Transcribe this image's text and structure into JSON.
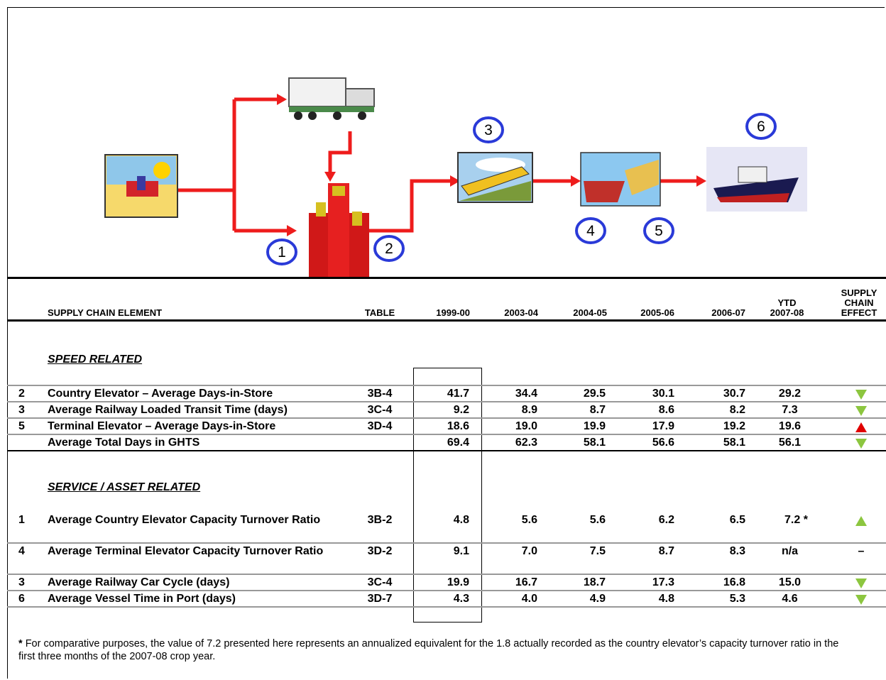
{
  "diagram": {
    "markers": [
      "1",
      "2",
      "3",
      "4",
      "5",
      "6"
    ]
  },
  "table": {
    "headers": [
      "SUPPLY CHAIN ELEMENT",
      "TABLE",
      "1999-00",
      "2003-04",
      "2004-05",
      "2005-06",
      "2006-07",
      "YTD\n2007-08",
      "SUPPLY\nCHAIN\nEFFECT"
    ],
    "sections": [
      {
        "title": "SPEED RELATED",
        "rows": [
          {
            "cells": [
              "2",
              "Country Elevator – Average Days-in-Store",
              "3B-4",
              "41.7",
              "34.4",
              "29.5",
              "30.1",
              "30.7",
              "29.2"
            ],
            "effect": {
              "symbol": "down",
              "color": "#8cc63f"
            }
          },
          {
            "cells": [
              "3",
              "Average Railway Loaded Transit Time (days)",
              "3C-4",
              "9.2",
              "8.9",
              "8.7",
              "8.6",
              "8.2",
              "7.3"
            ],
            "effect": {
              "symbol": "down",
              "color": "#8cc63f"
            }
          },
          {
            "cells": [
              "5",
              "Terminal Elevator – Average Days-in-Store",
              "3D-4",
              "18.6",
              "19.0",
              "19.9",
              "17.9",
              "19.2",
              "19.6"
            ],
            "effect": {
              "symbol": "up",
              "color": "#e00000"
            }
          },
          {
            "cells": [
              null,
              "Average Total Days in GHTS",
              null,
              "69.4",
              "62.3",
              "58.1",
              "56.6",
              "58.1",
              "56.1"
            ],
            "effect": {
              "symbol": "down",
              "color": "#8cc63f"
            }
          }
        ]
      },
      {
        "title": "SERVICE / ASSET RELATED",
        "rows": [
          {
            "cells": [
              "1",
              "Average Country Elevator Capacity Turnover Ratio",
              "3B-2",
              "4.8",
              "5.6",
              "5.6",
              "6.2",
              "6.5",
              "7.2 *"
            ],
            "effect": {
              "symbol": "up",
              "color": "#8cc63f"
            }
          },
          {
            "cells": [
              "4",
              "Average Terminal Elevator Capacity Turnover Ratio",
              "3D-2",
              "9.1",
              "7.0",
              "7.5",
              "8.7",
              "8.3",
              "n/a"
            ],
            "effect": {
              "text": "–"
            }
          },
          {
            "cells": [
              "3",
              "Average Railway Car Cycle (days)",
              "3C-4",
              "19.9",
              "16.7",
              "18.7",
              "17.3",
              "16.8",
              "15.0"
            ],
            "effect": {
              "symbol": "down",
              "color": "#8cc63f"
            }
          },
          {
            "cells": [
              "6",
              "Average Vessel Time in Port (days)",
              "3D-7",
              "4.3",
              "4.0",
              "4.9",
              "4.8",
              "5.3",
              "4.6"
            ],
            "effect": {
              "symbol": "down",
              "color": "#8cc63f"
            }
          }
        ]
      }
    ]
  },
  "footnote": {
    "mark": "*",
    "text": "For comparative purposes, the value of 7.2 presented here represents an annualized equivalent for the 1.8 actually recorded as the country elevator’s capacity turnover ratio in the first three months of the 2007-08 crop year."
  }
}
